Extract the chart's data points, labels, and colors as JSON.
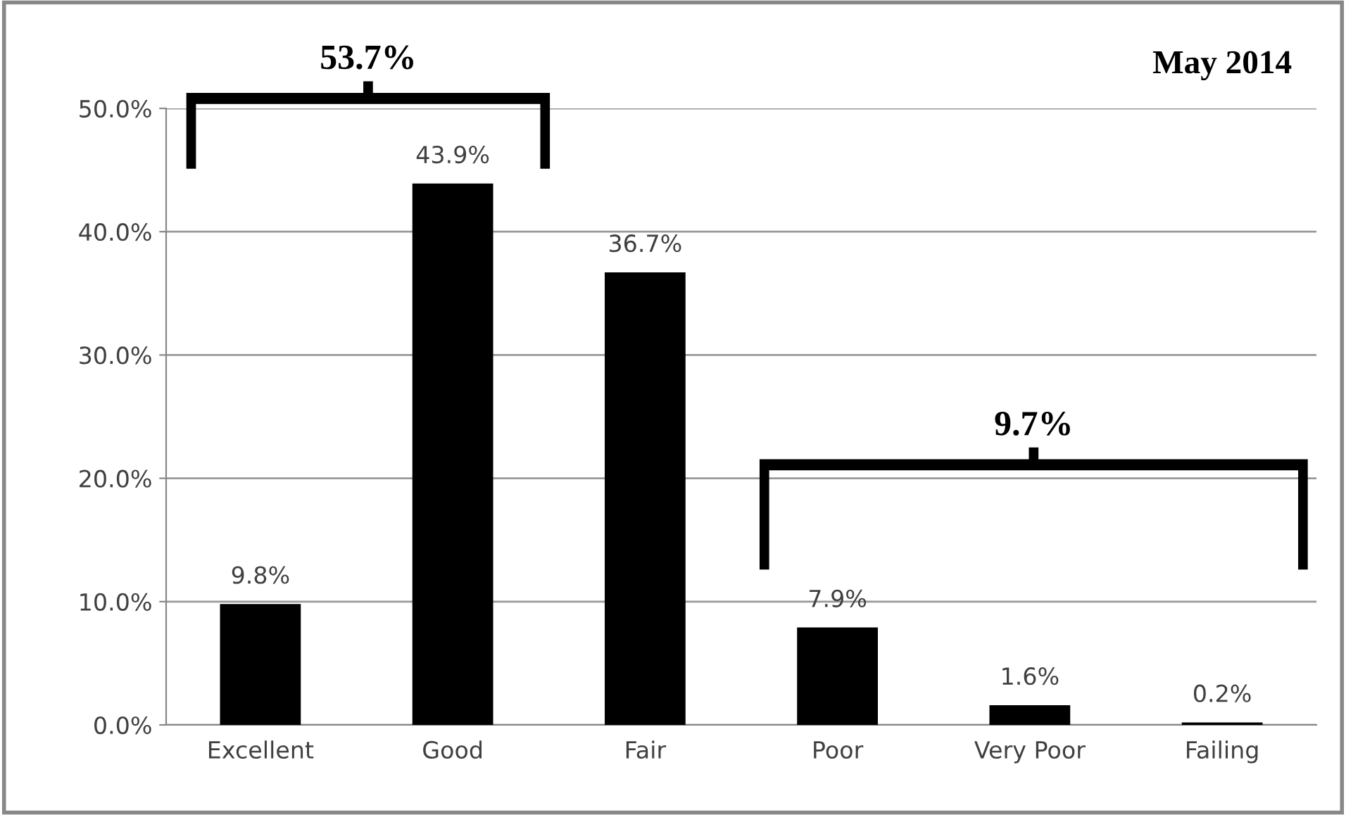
{
  "chart_data": {
    "type": "bar",
    "categories": [
      "Excellent",
      "Good",
      "Fair",
      "Poor",
      "Very Poor",
      "Failing"
    ],
    "values": [
      9.8,
      43.9,
      36.7,
      7.9,
      1.6,
      0.2
    ],
    "color": "#000000",
    "value_labels": [
      "9.8%",
      "43.9%",
      "36.7%",
      "7.9%",
      "1.6%",
      "0.2%"
    ],
    "ylim": [
      0,
      50
    ],
    "yticks": [
      {
        "value": 0,
        "label": "0.0%"
      },
      {
        "value": 10,
        "label": "10.0%"
      },
      {
        "value": 20,
        "label": "20.0%"
      },
      {
        "value": 30,
        "label": "30.0%"
      },
      {
        "value": 40,
        "label": "40.0%"
      },
      {
        "value": 50,
        "label": "50.0%"
      }
    ],
    "grid": "y",
    "annotations": [
      "53.7%",
      "9.7%",
      "May 2014"
    ]
  }
}
